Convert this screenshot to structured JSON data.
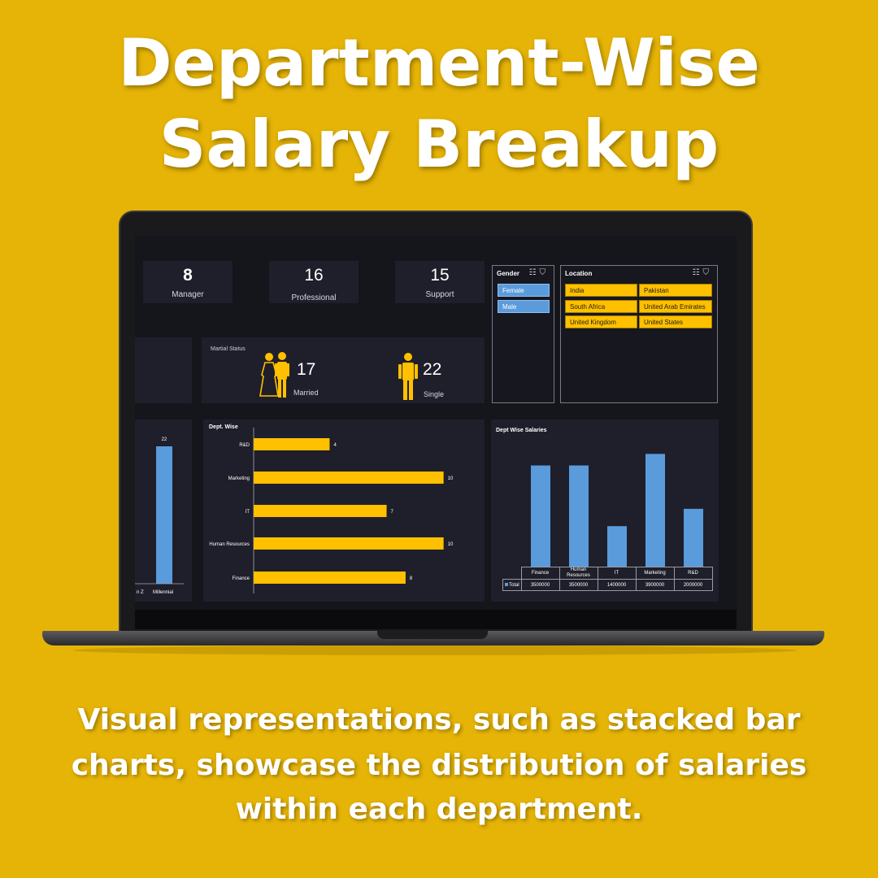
{
  "headline": {
    "line1": "Department-Wise",
    "line2": "Salary Breakup"
  },
  "caption": {
    "line1": "Visual representations, such as stacked bar",
    "line2": "charts, showcase the distribution of salaries",
    "line3": "within each department."
  },
  "dashboard": {
    "cards": [
      {
        "value": "8",
        "label": "Manager"
      },
      {
        "value": "16",
        "label": "Professional"
      },
      {
        "value": "15",
        "label": "Support"
      }
    ],
    "gender_slicer": {
      "title": "Gender",
      "items": [
        "Female",
        "Male"
      ]
    },
    "location_slicer": {
      "title": "Location",
      "items": [
        "India",
        "Pakistan",
        "South Africa",
        "United Arab Emirates",
        "United Kingdom",
        "United States"
      ]
    },
    "marital": {
      "title": "Martial Status",
      "married": {
        "value": "17",
        "label": "Married"
      },
      "single": {
        "value": "22",
        "label": "Single"
      }
    },
    "generation_chart": {
      "value_label": "22",
      "labels": [
        "n Z",
        "Millennial"
      ],
      "value": 22
    },
    "colors": {
      "yellow": "#FFC000",
      "blue": "#5A9BDB",
      "panel": "#1f1f2b"
    },
    "icons": [
      "couple-icon",
      "person-icon",
      "slicer-select-icon",
      "filter-icon"
    ]
  },
  "chart_data": [
    {
      "type": "bar",
      "orientation": "horizontal",
      "title": "Dept. Wise",
      "categories": [
        "R&D",
        "Marketing",
        "IT",
        "Human Resources",
        "Finance"
      ],
      "values": [
        4,
        10,
        7,
        10,
        8
      ],
      "xlim": [
        0,
        11
      ]
    },
    {
      "type": "bar",
      "title": "Dept Wise Salaries",
      "categories": [
        "Finance",
        "Human Resources",
        "IT",
        "Marketing",
        "R&D"
      ],
      "series": [
        {
          "name": "Total",
          "values": [
            3500000,
            3500000,
            1400000,
            3900000,
            2000000
          ]
        }
      ],
      "ylim": [
        0,
        4500000
      ],
      "table": {
        "row_label": "Total",
        "values": [
          "3500000",
          "3500000",
          "1400000",
          "3900000",
          "2000000"
        ],
        "header_line2": "Resources"
      }
    }
  ]
}
